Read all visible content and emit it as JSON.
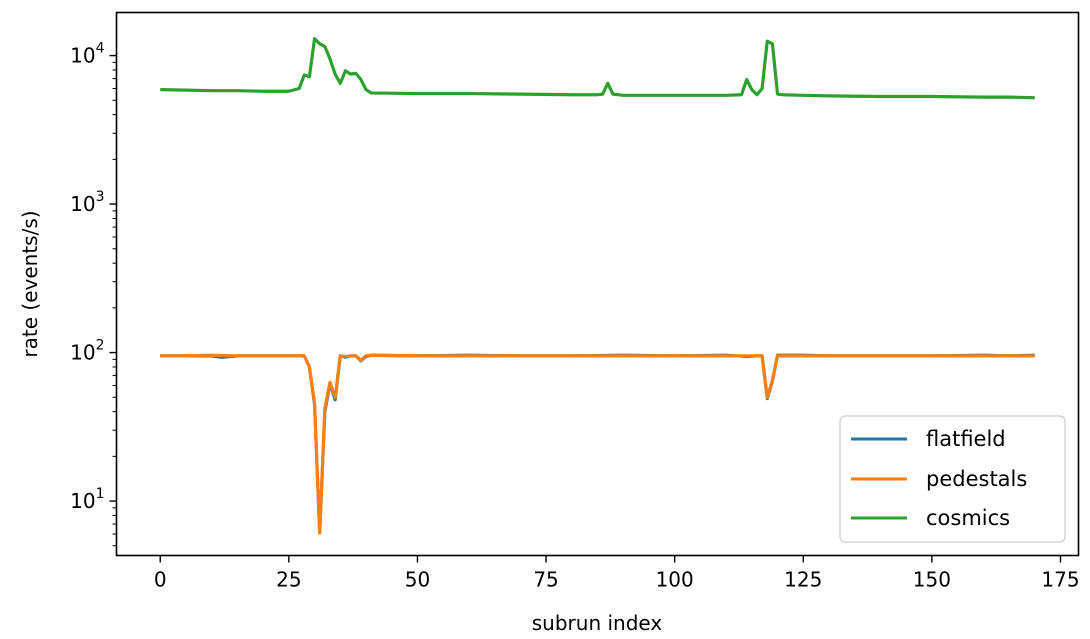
{
  "chart_data": {
    "type": "line",
    "xlabel": "subrun index",
    "ylabel": "rate (events/s)",
    "yscale": "log",
    "xlim": [
      -8.5,
      178.5
    ],
    "ylim": [
      4.3,
      19500
    ],
    "x_ticks": [
      0,
      25,
      50,
      75,
      100,
      125,
      150,
      175
    ],
    "x_tick_labels": [
      "0",
      "25",
      "50",
      "75",
      "100",
      "125",
      "150",
      "175"
    ],
    "y_ticks": [
      10,
      100,
      1000,
      10000
    ],
    "y_tick_labels": [
      {
        "base": "10",
        "exp": "1"
      },
      {
        "base": "10",
        "exp": "2"
      },
      {
        "base": "10",
        "exp": "3"
      },
      {
        "base": "10",
        "exp": "4"
      }
    ],
    "grid": false,
    "legend_position": "lower-right",
    "series": [
      {
        "name": "flatfield",
        "color": "#1f77b4",
        "points": [
          [
            0,
            95
          ],
          [
            5,
            95
          ],
          [
            10,
            95
          ],
          [
            12,
            93
          ],
          [
            15,
            95
          ],
          [
            20,
            95
          ],
          [
            25,
            95
          ],
          [
            28,
            95
          ],
          [
            29,
            80
          ],
          [
            30,
            45
          ],
          [
            31,
            6.1
          ],
          [
            32,
            40
          ],
          [
            33,
            62
          ],
          [
            34,
            48
          ],
          [
            35,
            95
          ],
          [
            36,
            93
          ],
          [
            37,
            95
          ],
          [
            38,
            95
          ],
          [
            39,
            88
          ],
          [
            40,
            94
          ],
          [
            41,
            96
          ],
          [
            50,
            95
          ],
          [
            60,
            96
          ],
          [
            70,
            95
          ],
          [
            80,
            95
          ],
          [
            90,
            96
          ],
          [
            100,
            95
          ],
          [
            110,
            96
          ],
          [
            114,
            94
          ],
          [
            116,
            95
          ],
          [
            117,
            95
          ],
          [
            118,
            49
          ],
          [
            119,
            64
          ],
          [
            120,
            96
          ],
          [
            125,
            96
          ],
          [
            130,
            95
          ],
          [
            140,
            95
          ],
          [
            150,
            95
          ],
          [
            160,
            96
          ],
          [
            165,
            95
          ],
          [
            170,
            96
          ]
        ]
      },
      {
        "name": "pedestals",
        "color": "#ff7f0e",
        "points": [
          [
            0,
            95
          ],
          [
            5,
            95
          ],
          [
            10,
            96
          ],
          [
            15,
            95
          ],
          [
            20,
            95
          ],
          [
            25,
            95
          ],
          [
            28,
            95
          ],
          [
            29,
            80
          ],
          [
            30,
            45
          ],
          [
            31,
            6.1
          ],
          [
            32,
            42
          ],
          [
            33,
            63
          ],
          [
            34,
            50
          ],
          [
            35,
            95
          ],
          [
            36,
            94
          ],
          [
            37,
            95
          ],
          [
            38,
            95
          ],
          [
            39,
            89
          ],
          [
            40,
            95
          ],
          [
            41,
            96
          ],
          [
            50,
            95
          ],
          [
            60,
            95
          ],
          [
            70,
            95
          ],
          [
            80,
            95
          ],
          [
            90,
            95
          ],
          [
            100,
            95
          ],
          [
            110,
            95
          ],
          [
            116,
            95
          ],
          [
            117,
            95
          ],
          [
            118,
            50
          ],
          [
            119,
            65
          ],
          [
            120,
            95
          ],
          [
            125,
            95
          ],
          [
            130,
            95
          ],
          [
            140,
            95
          ],
          [
            150,
            95
          ],
          [
            160,
            95
          ],
          [
            165,
            95
          ],
          [
            170,
            95
          ]
        ]
      },
      {
        "name": "cosmics",
        "color": "#2ca02c",
        "points": [
          [
            0,
            5900
          ],
          [
            5,
            5850
          ],
          [
            10,
            5800
          ],
          [
            15,
            5800
          ],
          [
            20,
            5750
          ],
          [
            25,
            5750
          ],
          [
            27,
            6000
          ],
          [
            28,
            7400
          ],
          [
            29,
            7200
          ],
          [
            30,
            13000
          ],
          [
            31,
            12000
          ],
          [
            32,
            11500
          ],
          [
            33,
            9500
          ],
          [
            34,
            7500
          ],
          [
            35,
            6500
          ],
          [
            36,
            7900
          ],
          [
            37,
            7500
          ],
          [
            38,
            7600
          ],
          [
            39,
            6900
          ],
          [
            40,
            5900
          ],
          [
            41,
            5600
          ],
          [
            50,
            5550
          ],
          [
            60,
            5550
          ],
          [
            70,
            5500
          ],
          [
            80,
            5450
          ],
          [
            85,
            5450
          ],
          [
            86,
            5500
          ],
          [
            87,
            6500
          ],
          [
            88,
            5500
          ],
          [
            90,
            5400
          ],
          [
            100,
            5400
          ],
          [
            110,
            5400
          ],
          [
            113,
            5450
          ],
          [
            114,
            6900
          ],
          [
            115,
            5900
          ],
          [
            116,
            5450
          ],
          [
            117,
            6000
          ],
          [
            118,
            12500
          ],
          [
            119,
            12000
          ],
          [
            120,
            5500
          ],
          [
            121,
            5450
          ],
          [
            125,
            5400
          ],
          [
            130,
            5350
          ],
          [
            140,
            5300
          ],
          [
            150,
            5300
          ],
          [
            160,
            5250
          ],
          [
            165,
            5250
          ],
          [
            170,
            5200
          ]
        ]
      }
    ]
  }
}
